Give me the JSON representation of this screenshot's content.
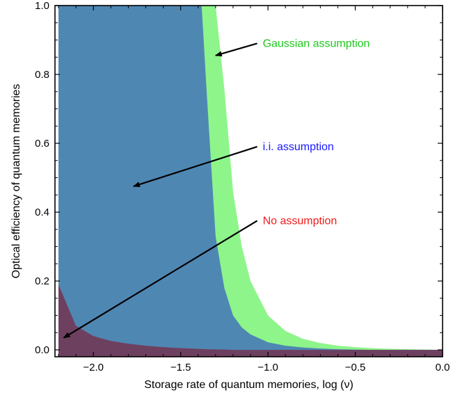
{
  "chart_data": {
    "type": "area",
    "xlabel": "Storage rate of quantum memories, log (ν)",
    "ylabel": "Optical efficiency of quantum memories",
    "xlim": [
      -2.22,
      0.0
    ],
    "ylim": [
      -0.02,
      1.0
    ],
    "x_ticks": [
      -2.0,
      -1.5,
      -1.0,
      -0.5,
      0.0
    ],
    "x_tick_labels": [
      "−2.0",
      "−1.5",
      "−1.0",
      "−0.5",
      "0.0"
    ],
    "y_ticks": [
      0.0,
      0.2,
      0.4,
      0.6,
      0.8,
      1.0
    ],
    "y_tick_labels": [
      "0.0",
      "0.2",
      "0.4",
      "0.6",
      "0.8",
      "1.0"
    ],
    "grid": false,
    "x": [
      -2.2,
      -2.1,
      -2.0,
      -1.9,
      -1.8,
      -1.7,
      -1.6,
      -1.5,
      -1.45,
      -1.4,
      -1.38,
      -1.35,
      -1.3,
      -1.25,
      -1.2,
      -1.15,
      -1.1,
      -1.0,
      -0.9,
      -0.8,
      -0.7,
      -0.6,
      -0.5,
      -0.4,
      -0.3,
      -0.2,
      -0.1,
      0.0
    ],
    "series": [
      {
        "name": "Gaussian assumption",
        "color": "#8ef58a",
        "values": [
          1.0,
          1.0,
          1.0,
          1.0,
          1.0,
          1.0,
          1.0,
          1.0,
          1.0,
          1.0,
          1.0,
          1.0,
          1.0,
          0.76,
          0.46,
          0.3,
          0.2,
          0.1,
          0.055,
          0.032,
          0.02,
          0.012,
          0.008,
          0.005,
          0.003,
          0.002,
          0.001,
          0.0
        ]
      },
      {
        "name": "i.i. assumption",
        "color": "#4f87b3",
        "values": [
          1.0,
          1.0,
          1.0,
          1.0,
          1.0,
          1.0,
          1.0,
          1.0,
          1.0,
          1.0,
          1.0,
          0.74,
          0.33,
          0.18,
          0.1,
          0.065,
          0.045,
          0.022,
          0.012,
          0.007,
          0.004,
          0.002,
          0.001,
          0.0,
          0.0,
          0.0,
          0.0,
          0.0
        ]
      },
      {
        "name": "No assumption",
        "color": "#6e4060",
        "values": [
          0.19,
          0.07,
          0.04,
          0.026,
          0.018,
          0.012,
          0.008,
          0.005,
          0.004,
          0.003,
          0.0025,
          0.002,
          0.0015,
          0.001,
          0.0,
          0.0,
          0.0,
          0.0,
          0.0,
          0.0,
          0.0,
          0.0,
          0.0,
          0.0,
          0.0,
          0.0,
          0.0,
          0.0
        ]
      }
    ],
    "annotations": [
      {
        "label": "Gaussian assumption",
        "color": "#1ec81e",
        "text_pos": [
          -1.03,
          0.88
        ],
        "arrow_to": [
          -1.3,
          0.855
        ]
      },
      {
        "label": "i.i. assumption",
        "color": "#1a1aff",
        "text_pos": [
          -1.03,
          0.58
        ],
        "arrow_to": [
          -1.77,
          0.475
        ]
      },
      {
        "label": "No assumption",
        "color": "#ee1c1c",
        "text_pos": [
          -1.03,
          0.365
        ],
        "arrow_to": [
          -2.17,
          0.035
        ]
      }
    ]
  }
}
